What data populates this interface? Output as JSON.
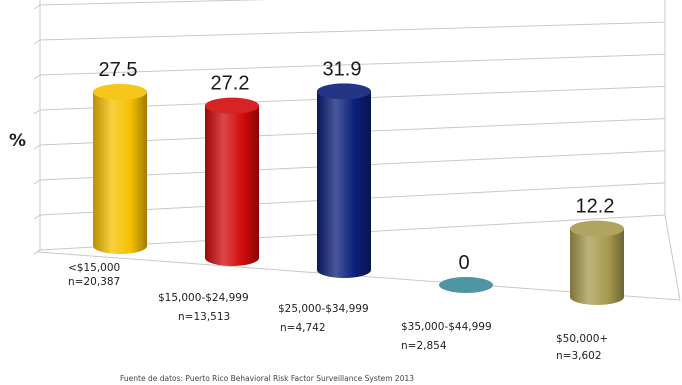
{
  "chart_data": {
    "type": "bar",
    "style": "3d-cylinder",
    "ylabel": "%",
    "categories": [
      "<$15,000",
      "$15,000-$24,999",
      "$25,000-$34,999",
      "$35,000-$44,999",
      "$50,000+"
    ],
    "sample_sizes": [
      "n=20,387",
      "n=13,513",
      "n=4,742",
      "n=2,854",
      "n=3,602"
    ],
    "values": [
      27.5,
      27.2,
      31.9,
      0,
      12.2
    ],
    "value_labels": [
      "27.5",
      "27.2",
      "31.9",
      "0",
      "12.2"
    ],
    "colors": [
      "#f5c000",
      "#d10a0a",
      "#0c1f78",
      "#4f95a3",
      "#a89a4e"
    ],
    "ylim": [
      0,
      35
    ],
    "grid": true,
    "source": "Fuente de datos: Puerto Rico Behavioral Risk Factor Surveillance System 2013"
  }
}
